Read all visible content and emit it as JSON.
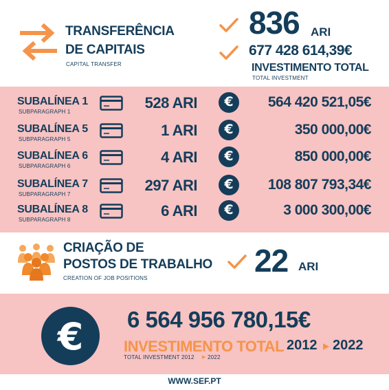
{
  "header": {
    "title_line1": "TRANSFERÊNCIA",
    "title_line2": "DE CAPITAIS",
    "subtitle": "CAPITAL TRANSFER",
    "count": "836",
    "count_unit": "ARI",
    "total_amount": "677 428 614,39€",
    "total_label": "INVESTIMENTO TOTAL",
    "total_sub": "TOTAL INVESTMENT"
  },
  "rows": [
    {
      "title": "SUBALÍNEA 1",
      "sub": "SUBPARAGRAPH 1",
      "count": "528 ARI",
      "amount": "564 420 521,05€"
    },
    {
      "title": "SUBALÍNEA 5",
      "sub": "SUBPARAGRAPH 5",
      "count": "1 ARI",
      "amount": "350 000,00€"
    },
    {
      "title": "SUBALÍNEA 6",
      "sub": "SUBPARAGRAPH 6",
      "count": "4 ARI",
      "amount": "850 000,00€"
    },
    {
      "title": "SUBALÍNEA 7",
      "sub": "SUBPARAGRAPH 7",
      "count": "297 ARI",
      "amount": "108 807 793,34€"
    },
    {
      "title": "SUBALÍNEA 8",
      "sub": "SUBPARAGRAPH 8",
      "count": "6 ARI",
      "amount": "3 000 300,00€"
    }
  ],
  "jobs": {
    "line1": "CRIAÇÃO DE",
    "line2": "POSTOS DE TRABALHO",
    "sub": "CREATION OF JOB POSITIONS",
    "count": "22",
    "unit": "ARI"
  },
  "grand": {
    "total": "6 564 956 780,15€",
    "label": "INVESTIMENTO TOTAL",
    "period_start": "2012",
    "period_end": "2022",
    "sub": "TOTAL INVESTMENT  2012",
    "sub_end": "2022"
  },
  "euro_symbol": "€",
  "footer": {
    "website": "WWW.SEF.PT"
  },
  "colors": {
    "navy": "#143d5a",
    "orange": "#f4944a",
    "pink": "#f7c3c3"
  },
  "icons": [
    "swap-arrows-icon",
    "checkmark-icon",
    "credit-card-icon",
    "euro-icon",
    "people-group-icon",
    "play-arrow-icon"
  ]
}
